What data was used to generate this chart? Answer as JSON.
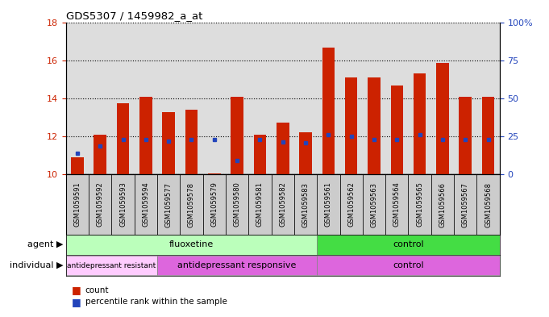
{
  "title": "GDS5307 / 1459982_a_at",
  "samples": [
    "GSM1059591",
    "GSM1059592",
    "GSM1059593",
    "GSM1059594",
    "GSM1059577",
    "GSM1059578",
    "GSM1059579",
    "GSM1059580",
    "GSM1059581",
    "GSM1059582",
    "GSM1059583",
    "GSM1059561",
    "GSM1059562",
    "GSM1059563",
    "GSM1059564",
    "GSM1059565",
    "GSM1059566",
    "GSM1059567",
    "GSM1059568"
  ],
  "bar_tops": [
    10.92,
    12.1,
    13.75,
    14.1,
    13.28,
    13.42,
    10.05,
    14.1,
    12.1,
    12.72,
    12.22,
    16.65,
    15.12,
    15.12,
    14.68,
    15.32,
    15.88,
    14.1,
    14.1
  ],
  "blue_y": [
    11.12,
    11.52,
    11.85,
    11.82,
    11.75,
    11.82,
    11.82,
    10.72,
    11.82,
    11.72,
    11.65,
    12.1,
    12.0,
    11.82,
    11.82,
    12.08,
    11.82,
    11.82,
    11.82
  ],
  "bar_color": "#cc2200",
  "blue_color": "#2244bb",
  "ymin": 10,
  "ymax": 18,
  "yticks": [
    10,
    12,
    14,
    16,
    18
  ],
  "y2ticks_vals": [
    10,
    12,
    14,
    16,
    18
  ],
  "y2ticks_labels": [
    "0",
    "25",
    "50",
    "75",
    "100%"
  ],
  "agent_fluoxetine_color": "#bbffbb",
  "agent_control_color": "#44dd44",
  "indiv_resistant_color": "#ffccff",
  "indiv_responsive_color": "#dd66dd",
  "indiv_control_color": "#dd66dd",
  "agent_groups": [
    {
      "label": "fluoxetine",
      "start": 0,
      "end": 11
    },
    {
      "label": "control",
      "start": 11,
      "end": 19
    }
  ],
  "individual_groups": [
    {
      "label": "antidepressant resistant",
      "start": 0,
      "end": 4
    },
    {
      "label": "antidepressant responsive",
      "start": 4,
      "end": 11
    },
    {
      "label": "control",
      "start": 11,
      "end": 19
    }
  ],
  "bar_width": 0.55,
  "tick_label_fontsize": 6.0,
  "title_fontsize": 9.5,
  "left_axis_color": "#cc2200",
  "right_axis_color": "#2244bb",
  "plot_bg_color": "#dddddd",
  "sample_bg_color": "#cccccc"
}
